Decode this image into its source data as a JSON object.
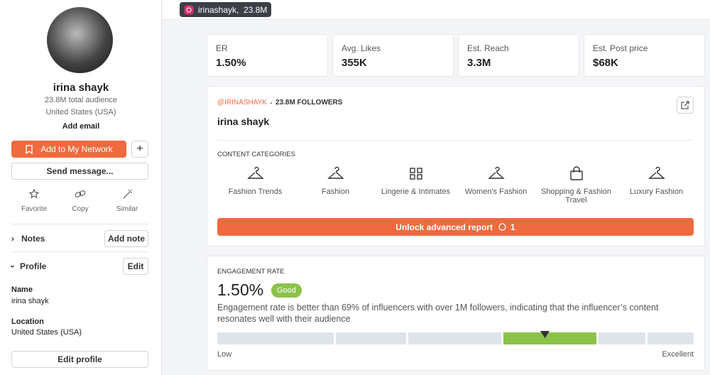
{
  "tab": {
    "handle": "irinashayk,",
    "followers": "23.8M"
  },
  "sidebar": {
    "name": "irina shayk",
    "audience": "23.8M total audience",
    "country": "United States (USA)",
    "add_email": "Add email",
    "add_network": "Add to My Network",
    "send_message": "Send message...",
    "actions": [
      "Favorite",
      "Copy",
      "Similar"
    ],
    "notes": "Notes",
    "add_note": "Add note",
    "profile": "Profile",
    "edit": "Edit",
    "fields": [
      {
        "label": "Name",
        "value": "irina shayk"
      },
      {
        "label": "Location",
        "value": "United States (USA)"
      }
    ],
    "edit_profile": "Edit profile"
  },
  "stats": [
    {
      "label": "ER",
      "value": "1.50%"
    },
    {
      "label": "Avg. Likes",
      "value": "355K"
    },
    {
      "label": "Est. Reach",
      "value": "3.3M"
    },
    {
      "label": "Est. Post price",
      "value": "$68K"
    }
  ],
  "overview": {
    "handle": "@IRINASHAYK",
    "followers": "23.8M FOLLOWERS",
    "name": "irina shayk",
    "categories_title": "CONTENT CATEGORIES",
    "categories": [
      "Fashion Trends",
      "Fashion",
      "Lingerie & Intimates",
      "Women's Fashion",
      "Shopping & Fashion Travel",
      "Luxury Fashion"
    ],
    "unlock": "Unlock advanced report",
    "unlock_count": "1"
  },
  "engagement": {
    "title": "ENGAGEMENT RATE",
    "value": "1.50%",
    "badge": "Good",
    "description": "Engagement rate is better than 69% of influencers with over 1M followers, indicating that the influencer’s content resonates well with their audience",
    "low": "Low",
    "high": "Excellent"
  }
}
